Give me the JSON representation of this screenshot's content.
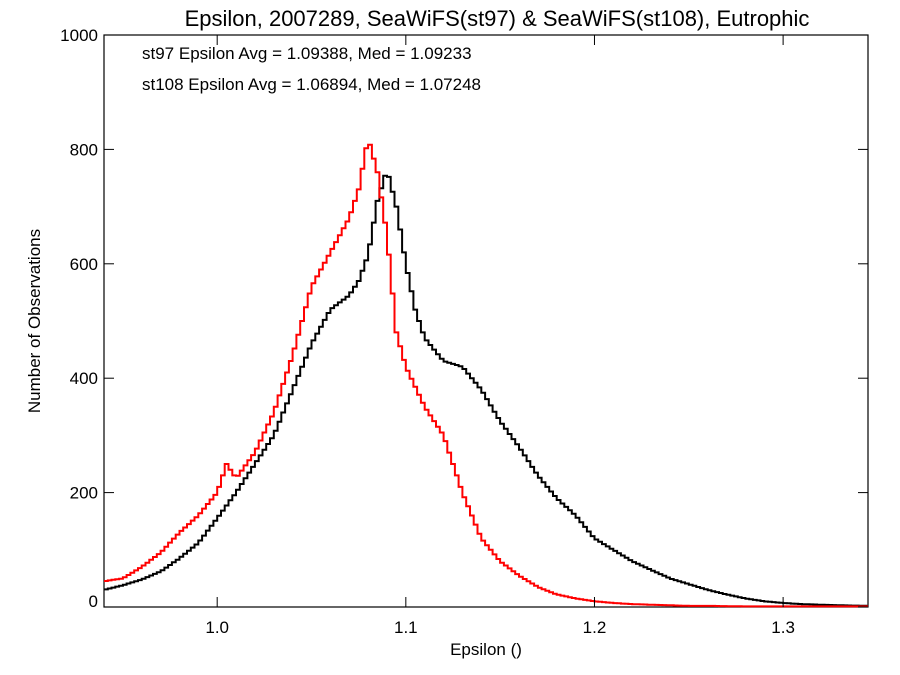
{
  "chart_data": {
    "type": "line",
    "title": "Epsilon, 2007289, SeaWiFS(st97) & SeaWiFS(st108), Eutrophic",
    "xlabel": "Epsilon ()",
    "ylabel": "Number of Observations",
    "xlim": [
      0.94,
      1.345
    ],
    "ylim": [
      0,
      1000
    ],
    "xticks": [
      1.0,
      1.1,
      1.2,
      1.3
    ],
    "xtick_labels": [
      "1.0",
      "1.1",
      "1.2",
      "1.3"
    ],
    "yticks": [
      0,
      200,
      400,
      600,
      800,
      1000
    ],
    "ytick_labels": [
      "0",
      "200",
      "400",
      "600",
      "800",
      "1000"
    ],
    "grid": false,
    "annotations": [
      {
        "text": "st97 Epsilon Avg = 1.09388, Med = 1.09233",
        "color": "#000000"
      },
      {
        "text": "st108 Epsilon Avg = 1.06894, Med = 1.07248",
        "color": "#ff0000"
      }
    ],
    "series": [
      {
        "color": "#000000",
        "style": "step",
        "x": [
          0.94,
          0.95,
          0.96,
          0.97,
          0.98,
          0.99,
          1.0,
          1.01,
          1.02,
          1.03,
          1.04,
          1.05,
          1.06,
          1.07,
          1.075,
          1.08,
          1.085,
          1.09,
          1.095,
          1.1,
          1.105,
          1.11,
          1.12,
          1.13,
          1.14,
          1.15,
          1.16,
          1.17,
          1.18,
          1.19,
          1.2,
          1.21,
          1.22,
          1.23,
          1.24,
          1.25,
          1.26,
          1.27,
          1.28,
          1.29,
          1.3,
          1.31,
          1.32,
          1.33,
          1.345
        ],
        "y": [
          30,
          38,
          48,
          62,
          85,
          112,
          155,
          200,
          250,
          300,
          380,
          460,
          520,
          545,
          570,
          615,
          710,
          765,
          700,
          600,
          520,
          470,
          430,
          420,
          380,
          325,
          280,
          230,
          190,
          160,
          120,
          100,
          80,
          65,
          50,
          40,
          30,
          22,
          15,
          10,
          7,
          5,
          4,
          3,
          2
        ]
      },
      {
        "color": "#ff0000",
        "style": "step",
        "x": [
          0.94,
          0.95,
          0.96,
          0.97,
          0.98,
          0.99,
          1.0,
          1.005,
          1.01,
          1.02,
          1.03,
          1.04,
          1.05,
          1.06,
          1.07,
          1.075,
          1.08,
          1.085,
          1.09,
          1.095,
          1.1,
          1.11,
          1.12,
          1.13,
          1.14,
          1.15,
          1.16,
          1.17,
          1.18,
          1.19,
          1.2,
          1.21,
          1.22,
          1.23,
          1.24,
          1.25,
          1.26,
          1.28,
          1.3,
          1.32,
          1.345
        ],
        "y": [
          45,
          50,
          70,
          95,
          130,
          160,
          200,
          250,
          225,
          270,
          340,
          440,
          560,
          620,
          680,
          730,
          820,
          760,
          650,
          480,
          420,
          350,
          300,
          200,
          120,
          80,
          55,
          35,
          22,
          15,
          10,
          7,
          5,
          4,
          3,
          2,
          2,
          1,
          1,
          1,
          1
        ]
      }
    ]
  }
}
